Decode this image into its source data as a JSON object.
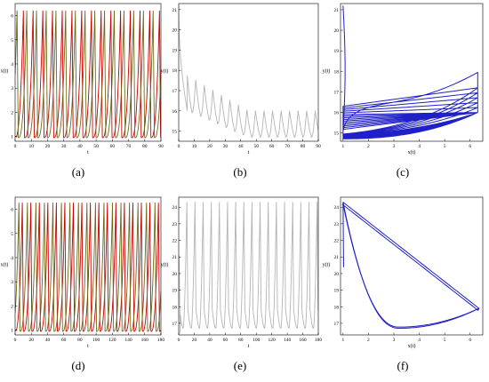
{
  "colors": {
    "red": "#cc0000",
    "olive": "#6b6b1a",
    "gray": "#b4b4b4",
    "blue": "#2020c8",
    "axis": "#000000"
  },
  "chart_data": [
    {
      "id": "a",
      "caption": "(a)",
      "type": "line",
      "xlabel": "t",
      "ylabel": "x(t)",
      "xlim": [
        0,
        90
      ],
      "ylim": [
        0.8,
        6.5
      ],
      "xticks": [
        "0",
        "10",
        "20",
        "30",
        "40",
        "50",
        "60",
        "70",
        "80",
        "90"
      ],
      "yticks": [
        "1",
        "2",
        "3",
        "4",
        "5",
        "6"
      ],
      "series": [
        {
          "color_key": "red",
          "model": {
            "kind": "relaxation",
            "period": 6,
            "start": 1,
            "peak": 6.2,
            "base": 0.95,
            "t0": 0,
            "t1": 90,
            "rise": 0.85,
            "phase": 0
          }
        },
        {
          "color_key": "olive",
          "model": {
            "kind": "relaxation",
            "period": 6,
            "start": 1,
            "peak": 6.2,
            "base": 0.95,
            "t0": 0,
            "t1": 90,
            "rise": 0.85,
            "phase": 0.35
          }
        }
      ]
    },
    {
      "id": "b",
      "caption": "(b)",
      "type": "line",
      "xlabel": "t",
      "ylabel": "y(t)",
      "xlim": [
        0,
        90
      ],
      "ylim": [
        14.5,
        21.3
      ],
      "xticks": [
        "0",
        "10",
        "20",
        "30",
        "40",
        "50",
        "60",
        "70",
        "80",
        "90"
      ],
      "yticks": [
        "15",
        "16",
        "17",
        "18",
        "19",
        "20",
        "21"
      ],
      "series": [
        {
          "color_key": "gray",
          "model": {
            "kind": "decay-spikes",
            "start": 21.2,
            "trough_start": 16.2,
            "trough_end": 14.7,
            "peak_start": 18.0,
            "peak_end": 16.0,
            "period": 5.5,
            "t0": 0,
            "t1": 90
          }
        }
      ]
    },
    {
      "id": "c",
      "caption": "(c)",
      "type": "line",
      "xlabel": "x(t)",
      "ylabel": "y(t)",
      "xlim": [
        0.9,
        6.5
      ],
      "ylim": [
        14.6,
        21.3
      ],
      "xticks": [
        "1",
        "2",
        "3",
        "4",
        "5",
        "6"
      ],
      "yticks": [
        "15",
        "16",
        "17",
        "18",
        "19",
        "20",
        "21"
      ],
      "series": [
        {
          "color_key": "blue",
          "model": {
            "kind": "phase-transient",
            "x_min": 1.0,
            "x_max": 6.3,
            "y_start": 21.2,
            "y_end_high": 16.0,
            "y_low": 14.7,
            "loops": 15
          }
        }
      ]
    },
    {
      "id": "d",
      "caption": "(d)",
      "type": "line",
      "xlabel": "t",
      "ylabel": "x(t)",
      "xlim": [
        0,
        180
      ],
      "ylim": [
        0.8,
        6.5
      ],
      "xticks": [
        "0",
        "20",
        "40",
        "60",
        "80",
        "100",
        "120",
        "140",
        "160",
        "180"
      ],
      "yticks": [
        "1",
        "2",
        "3",
        "4",
        "5",
        "6"
      ],
      "series": [
        {
          "color_key": "red",
          "model": {
            "kind": "relaxation",
            "period": 10.5,
            "start": 1,
            "peak": 6.3,
            "base": 0.95,
            "t0": 0,
            "t1": 180,
            "rise": 0.85,
            "phase": 0
          }
        },
        {
          "color_key": "olive",
          "model": {
            "kind": "relaxation",
            "period": 10.5,
            "start": 1,
            "peak": 6.3,
            "base": 0.95,
            "t0": 0,
            "t1": 180,
            "rise": 0.85,
            "phase": 0.6
          }
        }
      ]
    },
    {
      "id": "e",
      "caption": "(e)",
      "type": "line",
      "xlabel": "t",
      "ylabel": "y(t)",
      "xlim": [
        0,
        180
      ],
      "ylim": [
        16.3,
        24.6
      ],
      "xticks": [
        "0",
        "20",
        "40",
        "60",
        "80",
        "100",
        "120",
        "140",
        "160",
        "180"
      ],
      "yticks": [
        "17",
        "18",
        "19",
        "20",
        "21",
        "22",
        "23",
        "24"
      ],
      "series": [
        {
          "color_key": "gray",
          "model": {
            "kind": "sawtooth-spikes",
            "start": 21.0,
            "trough": 16.7,
            "peak": 24.3,
            "period": 10.5,
            "t0": 0,
            "t1": 180
          }
        }
      ]
    },
    {
      "id": "f",
      "caption": "(f)",
      "type": "line",
      "xlabel": "x(t)",
      "ylabel": "y(t)",
      "xlim": [
        0.9,
        6.5
      ],
      "ylim": [
        16.3,
        24.6
      ],
      "xticks": [
        "1",
        "2",
        "3",
        "4",
        "5",
        "6"
      ],
      "yticks": [
        "17",
        "18",
        "19",
        "20",
        "21",
        "22",
        "23",
        "24"
      ],
      "series": [
        {
          "color_key": "blue",
          "model": {
            "kind": "phase-cycle",
            "x_min": 1.0,
            "x_max": 6.35,
            "y_top": 24.3,
            "y_right": 17.9,
            "y_bottom": 16.7,
            "x_bottom": 3.2,
            "start_y": 21.0
          }
        }
      ]
    }
  ]
}
